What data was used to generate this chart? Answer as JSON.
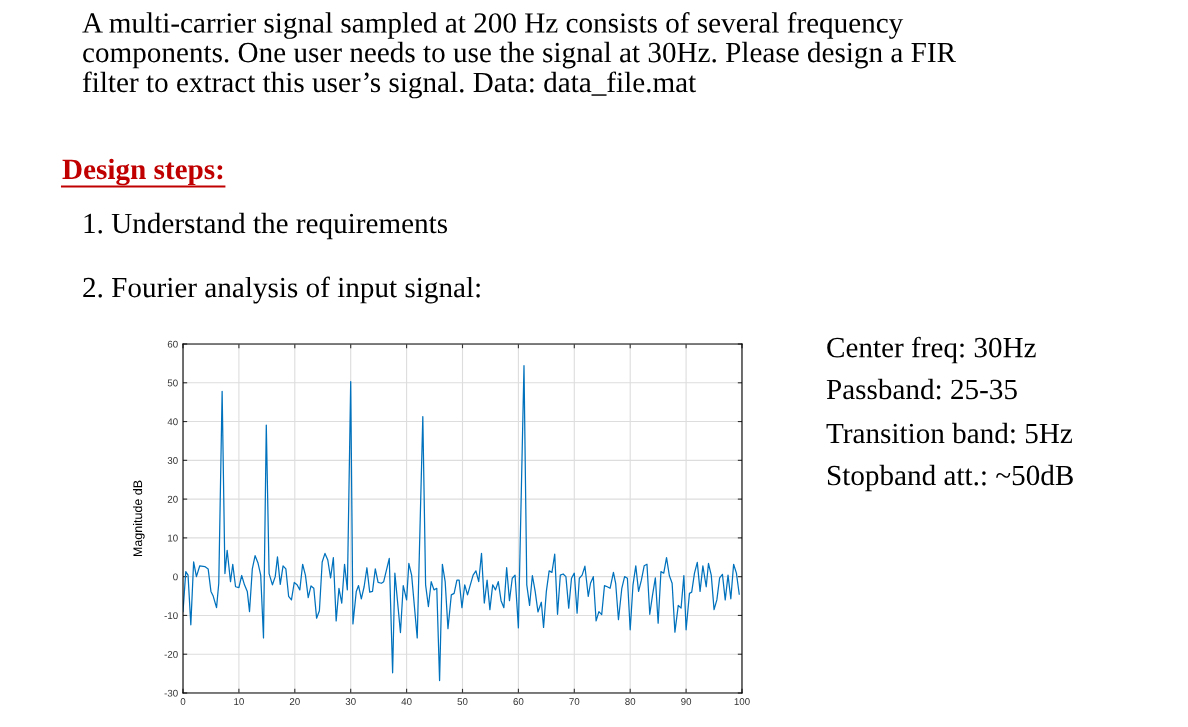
{
  "chart_data": {
    "type": "line",
    "title": "A multi-carrier signal sampled at 200 Hz consists of several frequency\ncomponents. One user needs to use the signal at 30Hz. Please design a FIR\nfilter to extract this user’s signal. Data: data_file.mat",
    "annotations": [
      "Design steps:",
      "1. Understand the requirements",
      "2. Fourier analysis of input signal:",
      "Center freq: 30Hz",
      "Passband: 25-35",
      "Transition band: 5Hz",
      "Stopband att.: ~50dB"
    ],
    "ylabel": "Magnitude dB",
    "x": [
      0,
      0.5,
      0.9,
      1.4,
      1.9,
      2.4,
      3,
      3.9,
      4.5,
      5,
      5.4,
      6,
      6.4,
      7,
      7.5,
      7.9,
      8.5,
      8.9,
      9.4,
      10,
      10.5,
      11,
      11.5,
      11.9,
      12.4,
      12.9,
      13.4,
      13.9,
      14.4,
      14.9,
      15.4,
      16,
      16.5,
      16.9,
      17.4,
      17.9,
      18.4,
      18.9,
      19.4,
      19.9,
      20.4,
      20.9,
      21.4,
      21.9,
      22.4,
      22.9,
      23.4,
      23.9,
      24.4,
      24.9,
      25.4,
      25.9,
      26.4,
      26.9,
      27.4,
      27.9,
      28.4,
      28.9,
      29.4,
      30,
      30.4,
      31,
      31.4,
      31.9,
      32.4,
      32.9,
      33.4,
      33.9,
      34.4,
      34.9,
      35.5,
      35.9,
      36.9,
      37.5,
      37.9,
      38.9,
      39.4,
      40,
      40.4,
      40.9,
      41.9,
      42.9,
      43.4,
      43.9,
      44.4,
      44.9,
      45.4,
      45.9,
      46.4,
      46.9,
      47.4,
      48,
      48.5,
      49,
      49.4,
      49.9,
      50.4,
      50.9,
      51.4,
      51.9,
      52.4,
      52.9,
      53.4,
      53.9,
      54.4,
      54.9,
      55.4,
      55.9,
      56.4,
      56.9,
      57.4,
      57.9,
      58.4,
      58.9,
      59.4,
      60,
      61,
      61.5,
      62,
      62.5,
      63,
      63.5,
      64.1,
      64.5,
      65,
      65.5,
      66,
      66.5,
      67,
      67.5,
      68,
      68.5,
      69,
      69.5,
      70,
      70.5,
      70.9,
      71.4,
      71.9,
      72.5,
      72.9,
      73.4,
      73.9,
      74.4,
      74.9,
      75.4,
      75.9,
      76.4,
      77,
      77.4,
      77.9,
      78.5,
      79,
      79.5,
      80,
      80.5,
      81,
      81.5,
      82,
      82.5,
      83,
      83.5,
      84,
      84.5,
      85,
      85.5,
      86,
      86.5,
      87,
      87.5,
      88,
      88.6,
      89.1,
      89.6,
      90,
      90.6,
      91,
      91.5,
      92,
      92.5,
      93,
      93.6,
      94,
      94.5,
      95,
      95.5,
      96,
      96.5,
      97,
      97.5,
      98,
      98.5,
      99,
      99.5
    ],
    "series": [
      {
        "color": "#0072bd",
        "values": [
          -9,
          1.3,
          0.4,
          -12.4,
          3.8,
          0,
          2.8,
          2.6,
          2,
          -3.8,
          -5,
          -8,
          -1.7,
          47.8,
          0.8,
          6.8,
          -1.3,
          3.2,
          -2.6,
          -2.8,
          0.3,
          -2.1,
          -3.8,
          -9,
          2,
          5.4,
          3.6,
          0.4,
          -15.8,
          39.1,
          0.8,
          -2.1,
          0,
          5.1,
          -2,
          2.8,
          2,
          -5.1,
          -6,
          -1.5,
          -2.1,
          -3.4,
          3.2,
          0.4,
          -5.4,
          -2.4,
          -3,
          -10.7,
          -8.8,
          3.8,
          6,
          4.3,
          -0.3,
          4.9,
          -11.4,
          -3,
          -6.8,
          3.2,
          -3.4,
          50.3,
          -12.2,
          -3.8,
          -2.3,
          -5.7,
          -2.6,
          2.3,
          -4,
          -3.8,
          2,
          -1.5,
          -1.7,
          -1.3,
          4.7,
          -24.8,
          0.9,
          -14.4,
          -2.3,
          -6,
          3.4,
          0.4,
          -15.8,
          41.3,
          -2.1,
          -7.7,
          -1.3,
          -3.4,
          -3,
          -26.8,
          3.2,
          -1.3,
          -13.4,
          -4.7,
          -4.3,
          -0.9,
          -0.9,
          -8,
          -2.1,
          -4.7,
          -2.1,
          0.4,
          1.5,
          -1.3,
          6,
          -6.8,
          -0.9,
          -8.5,
          -2.1,
          -3.4,
          -1.3,
          -6.2,
          -8,
          2.3,
          -6.2,
          -0.4,
          0.4,
          -13.2,
          54.4,
          -2.1,
          -7.4,
          0.3,
          -3.8,
          -9.1,
          -6.6,
          -13.1,
          -3.8,
          1.5,
          1.1,
          5.8,
          -9.7,
          0.4,
          0.7,
          0,
          -8.1,
          -0.4,
          0.9,
          -9.4,
          -0.4,
          0.4,
          2.7,
          -5.1,
          -1.7,
          0,
          -11.4,
          -9,
          -9.8,
          -2.3,
          -2.6,
          -3,
          1.1,
          -1.7,
          -11.1,
          -3,
          0,
          -0.4,
          -13.7,
          -2.1,
          2.8,
          -3.8,
          -0.9,
          2.8,
          3.2,
          -9.7,
          -4.7,
          -0.3,
          -12,
          1.3,
          0.9,
          4.9,
          0.3,
          -1.7,
          -14.3,
          -7.4,
          -8.1,
          0.3,
          -13.7,
          -4.3,
          -4,
          0.9,
          3.7,
          -3.8,
          2.8,
          -2.6,
          3.4,
          0.4,
          -8.5,
          -6,
          -0.3,
          0.6,
          -6,
          0.4,
          -5.7,
          3.2,
          0.9,
          -4.5
        ]
      }
    ],
    "xlim": [
      0,
      100
    ],
    "xticks": [
      0,
      10,
      20,
      30,
      40,
      50,
      60,
      70,
      80,
      90,
      100
    ],
    "ylim": [
      -30,
      60
    ],
    "yticks": [
      -30,
      -20,
      -10,
      0,
      10,
      20,
      30,
      40,
      50,
      60
    ],
    "grid": true
  }
}
